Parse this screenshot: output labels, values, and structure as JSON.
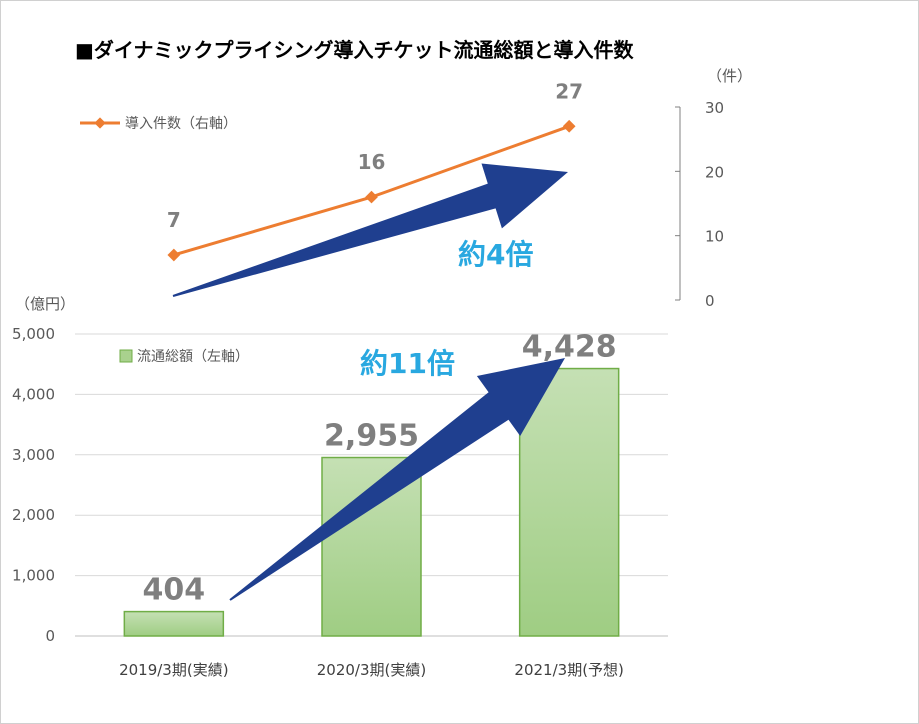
{
  "title": "■ダイナミックプライシング導入チケット流通総額と導入件数",
  "chart_data": {
    "type": "bar+line",
    "categories": [
      "2019/3期(実績)",
      "2020/3期(実績)",
      "2021/3期(予想)"
    ],
    "bar_series": {
      "name": "流通総額（左軸）",
      "values": [
        404,
        2955,
        4428
      ],
      "value_labels": [
        "404",
        "2,955",
        "4,428"
      ],
      "color": "#a9d18e",
      "axis": "left"
    },
    "line_series": {
      "name": "導入件数（右軸）",
      "values": [
        7,
        16,
        27
      ],
      "value_labels": [
        "7",
        "16",
        "27"
      ],
      "color": "#ed7d31",
      "axis": "right"
    },
    "left_axis": {
      "unit": "（億円）",
      "ylim": [
        0,
        5000
      ],
      "ticks": [
        0,
        1000,
        2000,
        3000,
        4000,
        5000
      ],
      "tick_labels": [
        "0",
        "1,000",
        "2,000",
        "3,000",
        "4,000",
        "5,000"
      ]
    },
    "right_axis": {
      "unit": "（件）",
      "ylim": [
        0,
        30
      ],
      "ticks": [
        0,
        10,
        20,
        30
      ],
      "tick_labels": [
        "0",
        "10",
        "20",
        "30"
      ]
    },
    "grid": true,
    "annotations": {
      "line_growth": "約4倍",
      "bar_growth": "約11倍"
    },
    "arrow_color": "#1f3f8f"
  }
}
